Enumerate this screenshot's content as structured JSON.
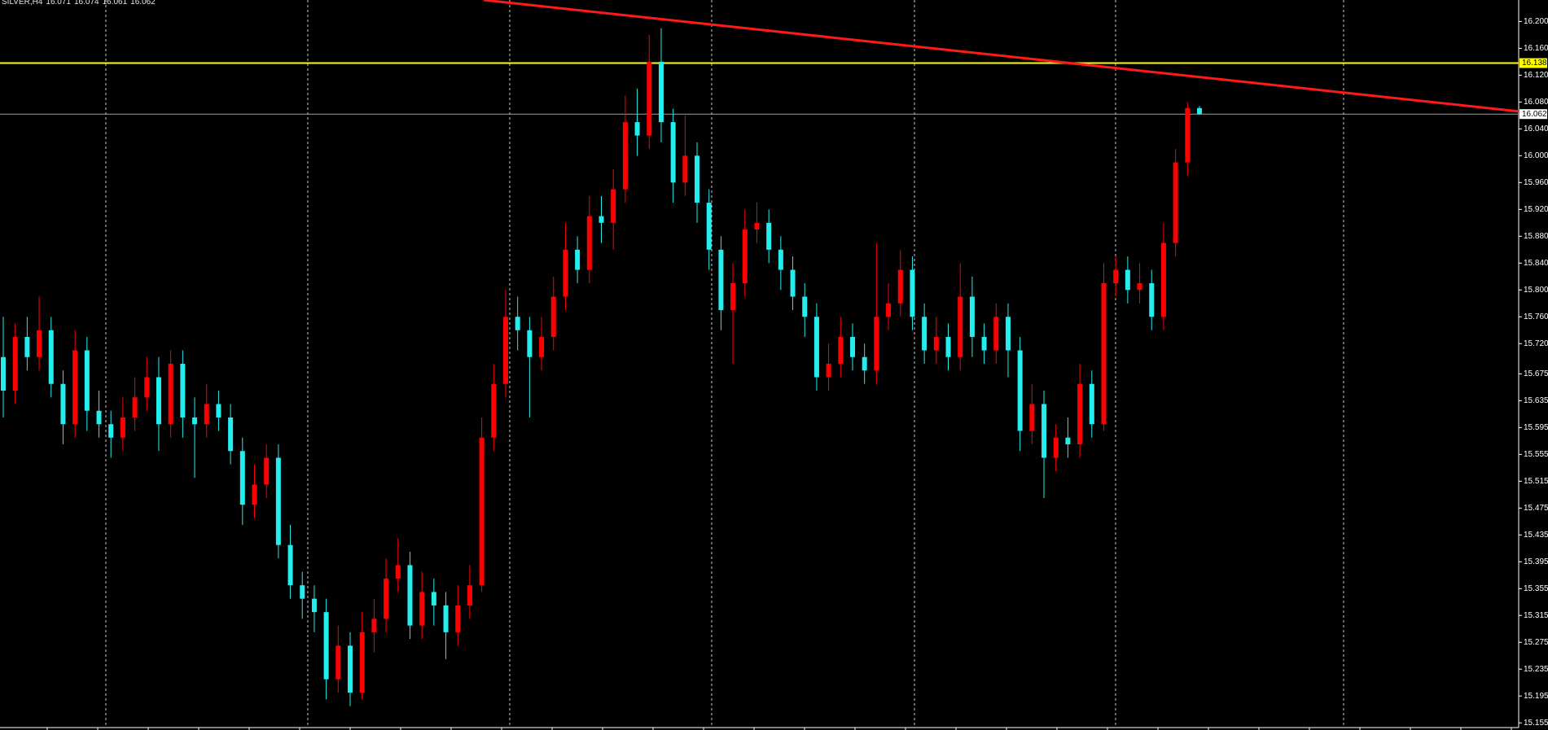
{
  "chart_data": {
    "type": "candlestick",
    "symbol": "SILVER,H4",
    "up_color": "#ff0000",
    "down_color": "#22eeee",
    "ylim": [
      15.148,
      16.232
    ],
    "yticks": [
      {
        "value": 16.2,
        "label": "16.200"
      },
      {
        "value": 16.16,
        "label": "16.160"
      },
      {
        "value": 16.12,
        "label": "16.120"
      },
      {
        "value": 16.08,
        "label": "16.080"
      },
      {
        "value": 16.04,
        "label": "16.040"
      },
      {
        "value": 16.0,
        "label": "16.000"
      },
      {
        "value": 15.96,
        "label": "15.960"
      },
      {
        "value": 15.92,
        "label": "15.920"
      },
      {
        "value": 15.88,
        "label": "15.880"
      },
      {
        "value": 15.84,
        "label": "15.840"
      },
      {
        "value": 15.8,
        "label": "15.800"
      },
      {
        "value": 15.76,
        "label": "15.760"
      },
      {
        "value": 15.72,
        "label": "15.720"
      },
      {
        "value": 15.675,
        "label": "15.675"
      },
      {
        "value": 15.635,
        "label": "15.635"
      },
      {
        "value": 15.595,
        "label": "15.595"
      },
      {
        "value": 15.555,
        "label": "15.555"
      },
      {
        "value": 15.515,
        "label": "15.515"
      },
      {
        "value": 15.475,
        "label": "15.475"
      },
      {
        "value": 15.435,
        "label": "15.435"
      },
      {
        "value": 15.395,
        "label": "15.395"
      },
      {
        "value": 15.355,
        "label": "15.355"
      },
      {
        "value": 15.315,
        "label": "15.315"
      },
      {
        "value": 15.275,
        "label": "15.275"
      },
      {
        "value": 15.235,
        "label": "15.235"
      },
      {
        "value": 15.195,
        "label": "15.195"
      },
      {
        "value": 15.155,
        "label": "15.155"
      }
    ],
    "levels": [
      {
        "value": 16.138,
        "label": "16.138",
        "color": "#ffff00",
        "label_background": "#ffff00"
      },
      {
        "value": 16.062,
        "label": "16.062",
        "color": "#a0a0a0",
        "label_background": "#ffffff"
      }
    ],
    "trendline": {
      "values": [
        16.232,
        16.066
      ],
      "color": "#ff1a1a"
    },
    "ohlc": [
      [
        15.7,
        15.76,
        15.61,
        15.65
      ],
      [
        15.65,
        15.75,
        15.63,
        15.73
      ],
      [
        15.73,
        15.76,
        15.68,
        15.7
      ],
      [
        15.7,
        15.79,
        15.68,
        15.74
      ],
      [
        15.74,
        15.76,
        15.64,
        15.66
      ],
      [
        15.66,
        15.68,
        15.57,
        15.6
      ],
      [
        15.6,
        15.74,
        15.58,
        15.71
      ],
      [
        15.71,
        15.73,
        15.59,
        15.62
      ],
      [
        15.62,
        15.65,
        15.58,
        15.6
      ],
      [
        15.6,
        15.62,
        15.55,
        15.58
      ],
      [
        15.58,
        15.64,
        15.56,
        15.61
      ],
      [
        15.61,
        15.67,
        15.59,
        15.64
      ],
      [
        15.64,
        15.7,
        15.62,
        15.67
      ],
      [
        15.67,
        15.7,
        15.56,
        15.6
      ],
      [
        15.6,
        15.71,
        15.58,
        15.69
      ],
      [
        15.69,
        15.71,
        15.58,
        15.61
      ],
      [
        15.61,
        15.64,
        15.52,
        15.6
      ],
      [
        15.6,
        15.66,
        15.58,
        15.63
      ],
      [
        15.63,
        15.65,
        15.59,
        15.61
      ],
      [
        15.61,
        15.63,
        15.54,
        15.56
      ],
      [
        15.56,
        15.58,
        15.45,
        15.48
      ],
      [
        15.48,
        15.54,
        15.46,
        15.51
      ],
      [
        15.51,
        15.57,
        15.49,
        15.55
      ],
      [
        15.55,
        15.57,
        15.4,
        15.42
      ],
      [
        15.42,
        15.45,
        15.34,
        15.36
      ],
      [
        15.36,
        15.38,
        15.31,
        15.34
      ],
      [
        15.34,
        15.36,
        15.29,
        15.32
      ],
      [
        15.32,
        15.34,
        15.19,
        15.22
      ],
      [
        15.22,
        15.3,
        15.2,
        15.27
      ],
      [
        15.27,
        15.29,
        15.18,
        15.2
      ],
      [
        15.2,
        15.32,
        15.19,
        15.29
      ],
      [
        15.29,
        15.34,
        15.26,
        15.31
      ],
      [
        15.31,
        15.4,
        15.29,
        15.37
      ],
      [
        15.37,
        15.43,
        15.35,
        15.39
      ],
      [
        15.39,
        15.41,
        15.28,
        15.3
      ],
      [
        15.3,
        15.38,
        15.28,
        15.35
      ],
      [
        15.35,
        15.37,
        15.3,
        15.33
      ],
      [
        15.33,
        15.35,
        15.25,
        15.29
      ],
      [
        15.29,
        15.36,
        15.27,
        15.33
      ],
      [
        15.33,
        15.39,
        15.31,
        15.36
      ],
      [
        15.36,
        15.61,
        15.35,
        15.58
      ],
      [
        15.58,
        15.69,
        15.56,
        15.66
      ],
      [
        15.66,
        15.8,
        15.64,
        15.76
      ],
      [
        15.76,
        15.79,
        15.71,
        15.74
      ],
      [
        15.74,
        15.76,
        15.61,
        15.7
      ],
      [
        15.7,
        15.76,
        15.68,
        15.73
      ],
      [
        15.73,
        15.82,
        15.71,
        15.79
      ],
      [
        15.79,
        15.9,
        15.77,
        15.86
      ],
      [
        15.86,
        15.88,
        15.81,
        15.83
      ],
      [
        15.83,
        15.94,
        15.81,
        15.91
      ],
      [
        15.91,
        15.94,
        15.87,
        15.9
      ],
      [
        15.9,
        15.98,
        15.86,
        15.95
      ],
      [
        15.95,
        16.09,
        15.93,
        16.05
      ],
      [
        16.05,
        16.1,
        16.0,
        16.03
      ],
      [
        16.03,
        16.18,
        16.01,
        16.14
      ],
      [
        16.14,
        16.19,
        16.02,
        16.05
      ],
      [
        16.05,
        16.07,
        15.93,
        15.96
      ],
      [
        15.96,
        16.06,
        15.94,
        16.0
      ],
      [
        16.0,
        16.02,
        15.9,
        15.93
      ],
      [
        15.93,
        15.95,
        15.83,
        15.86
      ],
      [
        15.86,
        15.88,
        15.74,
        15.77
      ],
      [
        15.77,
        15.84,
        15.69,
        15.81
      ],
      [
        15.81,
        15.92,
        15.79,
        15.89
      ],
      [
        15.89,
        15.93,
        15.87,
        15.9
      ],
      [
        15.9,
        15.92,
        15.84,
        15.86
      ],
      [
        15.86,
        15.88,
        15.8,
        15.83
      ],
      [
        15.83,
        15.85,
        15.77,
        15.79
      ],
      [
        15.79,
        15.81,
        15.73,
        15.76
      ],
      [
        15.76,
        15.78,
        15.65,
        15.67
      ],
      [
        15.67,
        15.72,
        15.65,
        15.69
      ],
      [
        15.69,
        15.76,
        15.67,
        15.73
      ],
      [
        15.73,
        15.75,
        15.68,
        15.7
      ],
      [
        15.7,
        15.72,
        15.66,
        15.68
      ],
      [
        15.68,
        15.87,
        15.66,
        15.76
      ],
      [
        15.76,
        15.81,
        15.74,
        15.78
      ],
      [
        15.78,
        15.86,
        15.76,
        15.83
      ],
      [
        15.83,
        15.85,
        15.74,
        15.76
      ],
      [
        15.76,
        15.78,
        15.69,
        15.71
      ],
      [
        15.71,
        15.76,
        15.69,
        15.73
      ],
      [
        15.73,
        15.75,
        15.68,
        15.7
      ],
      [
        15.7,
        15.84,
        15.68,
        15.79
      ],
      [
        15.79,
        15.82,
        15.7,
        15.73
      ],
      [
        15.73,
        15.75,
        15.69,
        15.71
      ],
      [
        15.71,
        15.78,
        15.69,
        15.76
      ],
      [
        15.76,
        15.78,
        15.67,
        15.71
      ],
      [
        15.71,
        15.73,
        15.56,
        15.59
      ],
      [
        15.59,
        15.66,
        15.57,
        15.63
      ],
      [
        15.63,
        15.65,
        15.49,
        15.55
      ],
      [
        15.55,
        15.6,
        15.53,
        15.58
      ],
      [
        15.58,
        15.61,
        15.55,
        15.57
      ],
      [
        15.57,
        15.69,
        15.55,
        15.66
      ],
      [
        15.66,
        15.68,
        15.58,
        15.6
      ],
      [
        15.6,
        15.84,
        15.59,
        15.81
      ],
      [
        15.81,
        15.85,
        15.79,
        15.83
      ],
      [
        15.83,
        15.85,
        15.78,
        15.8
      ],
      [
        15.8,
        15.84,
        15.78,
        15.81
      ],
      [
        15.81,
        15.83,
        15.74,
        15.76
      ],
      [
        15.76,
        15.9,
        15.74,
        15.87
      ],
      [
        15.87,
        16.01,
        15.85,
        15.99
      ],
      [
        15.99,
        16.08,
        15.97,
        16.071
      ],
      [
        16.071,
        16.074,
        16.061,
        16.062
      ]
    ]
  }
}
